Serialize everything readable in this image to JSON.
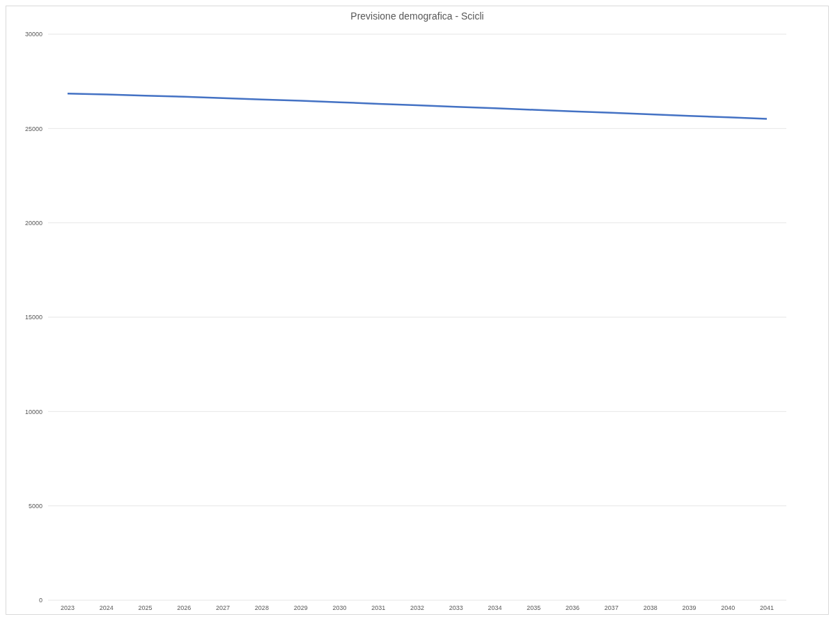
{
  "chart_data": {
    "type": "line",
    "title": "Previsione demografica - Scicli",
    "categories": [
      "2023",
      "2024",
      "2025",
      "2026",
      "2027",
      "2028",
      "2029",
      "2030",
      "2031",
      "2032",
      "2033",
      "2034",
      "2035",
      "2036",
      "2037",
      "2038",
      "2039",
      "2040",
      "2041"
    ],
    "series": [
      {
        "color": "#4472c4",
        "values": [
          26850,
          26800,
          26740,
          26680,
          26610,
          26540,
          26470,
          26390,
          26310,
          26230,
          26150,
          26070,
          25990,
          25910,
          25830,
          25750,
          25670,
          25590,
          25510
        ]
      }
    ],
    "ylim": [
      0,
      30000
    ],
    "yticks": [
      0,
      5000,
      10000,
      15000,
      20000,
      25000,
      30000
    ],
    "grid": "y",
    "legend": false,
    "marker": "none",
    "line_style": "solid"
  }
}
